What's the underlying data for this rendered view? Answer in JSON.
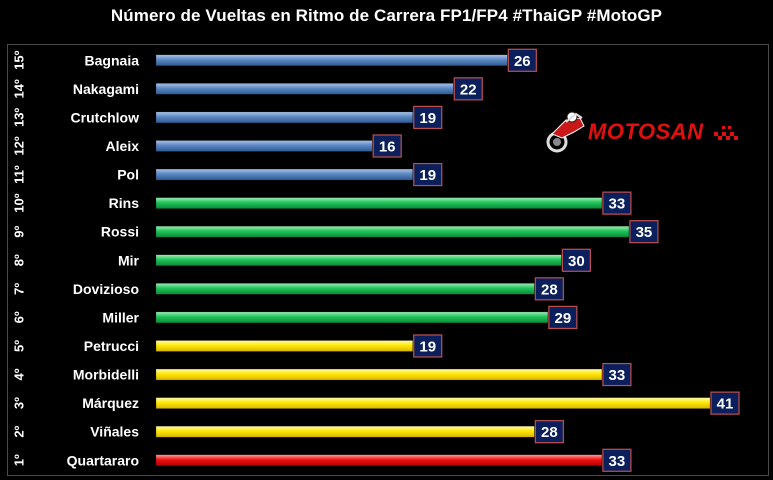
{
  "title": "Número de Vueltas en Ritmo de Carrera FP1/FP4 #ThaiGP #MotoGP",
  "logo": {
    "text": "MOTOSAN"
  },
  "colors": {
    "background": "#000000",
    "blue": "#4f81bd",
    "green": "#00b050",
    "yellow": "#ffff00",
    "red": "#ff0000",
    "label_box": "#0b1f5c",
    "label_border": "#c0504d"
  },
  "chart_data": {
    "type": "bar",
    "orientation": "horizontal",
    "title": "Número de Vueltas en Ritmo de Carrera FP1/FP4 #ThaiGP #MotoGP",
    "xlabel": "",
    "ylabel": "",
    "xlim": [
      0,
      41
    ],
    "grid": false,
    "legend": "none",
    "categories": [
      "Bagnaia",
      "Nakagami",
      "Crutchlow",
      "Aleix",
      "Pol",
      "Rins",
      "Rossi",
      "Mir",
      "Dovizioso",
      "Miller",
      "Petrucci",
      "Morbidelli",
      "Márquez",
      "Viñales",
      "Quartararo"
    ],
    "positions": [
      "15º",
      "14º",
      "13º",
      "12º",
      "11º",
      "10º",
      "9º",
      "8º",
      "7º",
      "6º",
      "5º",
      "4º",
      "3º",
      "2º",
      "1º"
    ],
    "values": [
      26,
      22,
      19,
      16,
      19,
      33,
      35,
      30,
      28,
      29,
      19,
      33,
      41,
      28,
      33
    ],
    "bar_colors": [
      "blue",
      "blue",
      "blue",
      "blue",
      "blue",
      "green",
      "green",
      "green",
      "green",
      "green",
      "yellow",
      "yellow",
      "yellow",
      "yellow",
      "red"
    ]
  }
}
